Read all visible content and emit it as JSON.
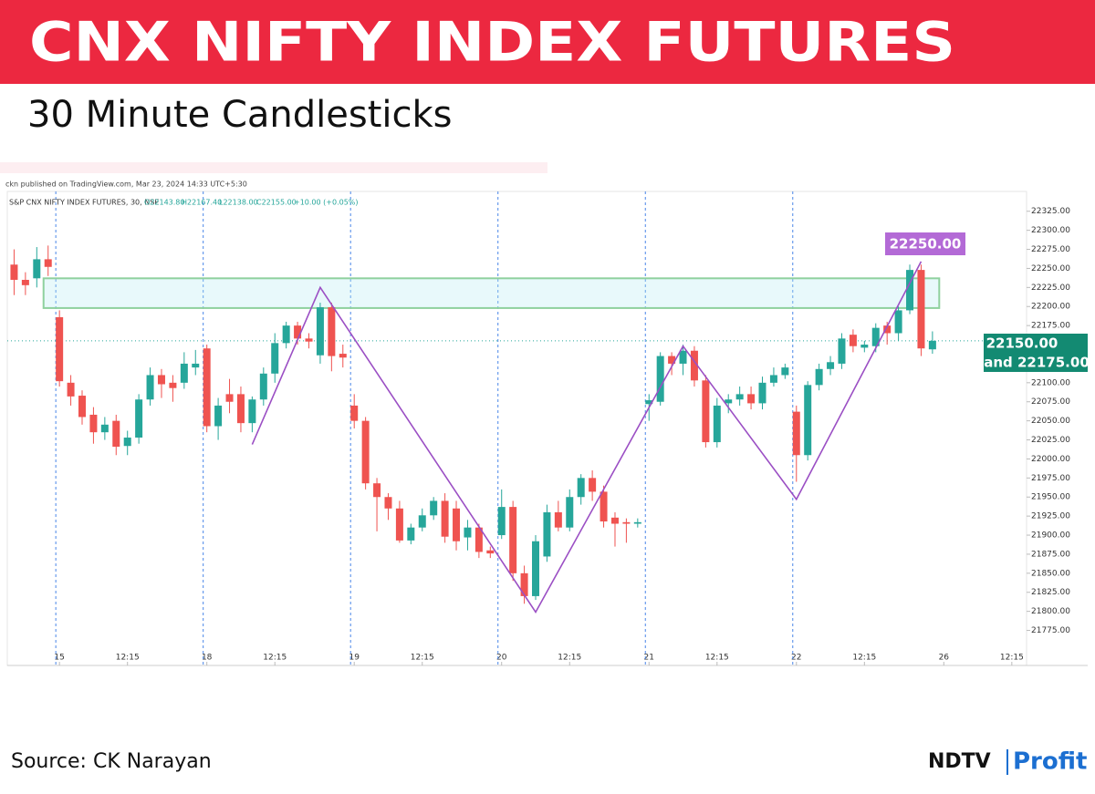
{
  "chart_data": {
    "type": "candlestick",
    "title": "CNX NIFTY INDEX FUTURES",
    "subtitle": "30 Minute Candlesticks",
    "publisher_note": "ckn published on TradingView.com, Mar 23, 2024 14:33 UTC+5:30",
    "header": {
      "symbol": "S&P CNX NIFTY INDEX FUTURES, 30, NSE",
      "open": "O22143.80",
      "high": "H22167.40",
      "low": "L22138.00",
      "close": "C22155.00",
      "change": "+10.00 (+0.05%)"
    },
    "up_color": "#26a69a",
    "down_color": "#ef5350",
    "x": [
      -4,
      -3,
      -2,
      -1,
      0,
      1,
      2,
      3,
      4,
      5,
      6,
      7,
      8,
      9,
      10,
      11,
      12,
      13,
      14,
      15,
      16,
      17,
      18,
      19,
      20,
      21,
      22,
      23,
      24,
      25,
      26,
      27,
      28,
      29,
      30,
      31,
      32,
      33,
      34,
      35,
      36,
      37,
      38,
      39,
      40,
      41,
      42,
      43,
      44,
      45,
      46,
      47,
      48,
      49,
      50,
      51,
      52,
      53,
      54,
      55,
      56,
      57,
      58,
      59,
      60,
      61,
      62,
      63,
      64,
      65,
      66,
      67,
      68,
      69,
      70,
      71,
      72,
      73,
      74,
      75,
      76,
      77
    ],
    "open": [
      22255,
      22235,
      22237,
      22262,
      22186,
      22100,
      22083,
      22058,
      22035,
      22050,
      22017,
      22028,
      22078,
      22110,
      22100,
      22100,
      22120,
      22145,
      22043,
      22085,
      22085,
      22047,
      22078,
      22112,
      22152,
      22175,
      22158,
      22136,
      22199,
      22138,
      22070,
      22050,
      21968,
      21950,
      21935,
      21893,
      21910,
      21926,
      21945,
      21935,
      21897,
      21910,
      21880,
      21900,
      21937,
      21850,
      21820,
      21872,
      21930,
      21910,
      21950,
      21975,
      21957,
      21923,
      21917,
      21915,
      22072,
      22075,
      22135,
      22125,
      22142,
      22103,
      22022,
      22073,
      22078,
      22085,
      22073,
      22100,
      22110,
      22062,
      22005,
      22097,
      22118,
      22125,
      22163,
      22146,
      22148,
      22175,
      22165,
      22195,
      22248,
      22143.8
    ],
    "high": [
      22275,
      22245,
      22278,
      22280,
      22195,
      22110,
      22090,
      22068,
      22055,
      22058,
      22037,
      22085,
      22120,
      22118,
      22110,
      22140,
      22143,
      22150,
      22080,
      22105,
      22095,
      22082,
      22120,
      22165,
      22180,
      22180,
      22165,
      22205,
      22205,
      22150,
      22085,
      22055,
      21975,
      21955,
      21945,
      21915,
      21935,
      21950,
      21955,
      21945,
      21920,
      21915,
      21885,
      21960,
      21945,
      21860,
      21900,
      21940,
      21945,
      21960,
      21980,
      21985,
      21965,
      21930,
      21922,
      21922,
      22085,
      22140,
      22140,
      22150,
      22148,
      22110,
      22080,
      22085,
      22095,
      22095,
      22108,
      22120,
      22125,
      22070,
      22102,
      22125,
      22135,
      22165,
      22170,
      22155,
      22178,
      22180,
      22200,
      22255,
      22255,
      22167.4
    ],
    "low": [
      22215,
      22215,
      22225,
      22240,
      22095,
      22070,
      22045,
      22020,
      22025,
      22005,
      22005,
      22020,
      22070,
      22080,
      22075,
      22092,
      22110,
      22035,
      22025,
      22060,
      22035,
      22035,
      22070,
      22100,
      22145,
      22150,
      22145,
      22125,
      22115,
      22120,
      22040,
      21960,
      21905,
      21920,
      21890,
      21888,
      21905,
      21920,
      21890,
      21880,
      21880,
      21870,
      21870,
      21895,
      21840,
      21810,
      21815,
      21865,
      21905,
      21905,
      21940,
      21945,
      21910,
      21885,
      21890,
      21910,
      22050,
      22070,
      22110,
      22110,
      22095,
      22015,
      22015,
      22060,
      22070,
      22065,
      22065,
      22095,
      22105,
      21970,
      21998,
      22090,
      22110,
      22118,
      22140,
      22140,
      22140,
      22150,
      22155,
      22190,
      22135,
      22138
    ],
    "close": [
      22235,
      22228,
      22262,
      22252,
      22102,
      22082,
      22055,
      22035,
      22045,
      22016,
      22028,
      22078,
      22110,
      22098,
      22093,
      22125,
      22125,
      22043,
      22070,
      22075,
      22047,
      22078,
      22112,
      22152,
      22175,
      22158,
      22154,
      22199,
      22135,
      22133,
      22050,
      21968,
      21950,
      21935,
      21893,
      21910,
      21926,
      21945,
      21898,
      21892,
      21910,
      21878,
      21876,
      21937,
      21850,
      21820,
      21892,
      21930,
      21910,
      21950,
      21975,
      21957,
      21918,
      21915,
      21915,
      21917,
      22077,
      22135,
      22125,
      22142,
      22103,
      22022,
      22070,
      22078,
      22085,
      22073,
      22100,
      22110,
      22120,
      22005,
      22097,
      22118,
      22127,
      22158,
      22148,
      22150,
      22172,
      22165,
      22195,
      22248,
      22145,
      22155
    ],
    "xlim": [
      -4.6,
      85.3
    ],
    "ylim": [
      21729,
      22351
    ],
    "xticks": [
      {
        "value": 0,
        "label": "15"
      },
      {
        "value": 6,
        "label": "12:15"
      },
      {
        "value": 13,
        "label": "18"
      },
      {
        "value": 19,
        "label": "12:15"
      },
      {
        "value": 26,
        "label": "19"
      },
      {
        "value": 32,
        "label": "12:15"
      },
      {
        "value": 39,
        "label": "20"
      },
      {
        "value": 45,
        "label": "12:15"
      },
      {
        "value": 52,
        "label": "21"
      },
      {
        "value": 58,
        "label": "12:15"
      },
      {
        "value": 65,
        "label": "22"
      },
      {
        "value": 71,
        "label": "12:15"
      },
      {
        "value": 78,
        "label": "26"
      },
      {
        "value": 84,
        "label": "12:15"
      }
    ],
    "session_breaks": [
      0,
      13,
      26,
      39,
      52,
      65
    ],
    "yticks": [
      {
        "value": 21775,
        "label": "21775.00"
      },
      {
        "value": 21800,
        "label": "21800.00"
      },
      {
        "value": 21825,
        "label": "21825.00"
      },
      {
        "value": 21850,
        "label": "21850.00"
      },
      {
        "value": 21875,
        "label": "21875.00"
      },
      {
        "value": 21900,
        "label": "21900.00"
      },
      {
        "value": 21925,
        "label": "21925.00"
      },
      {
        "value": 21950,
        "label": "21950.00"
      },
      {
        "value": 21975,
        "label": "21975.00"
      },
      {
        "value": 22000,
        "label": "22000.00"
      },
      {
        "value": 22025,
        "label": "22025.00"
      },
      {
        "value": 22050,
        "label": "22050.00"
      },
      {
        "value": 22075,
        "label": "22075.00"
      },
      {
        "value": 22100,
        "label": "22100.00"
      },
      {
        "value": 22125,
        "label": "22125.00"
      },
      {
        "value": 22150,
        "label": "22150.00"
      },
      {
        "value": 22175,
        "label": "22175.00"
      },
      {
        "value": 22200,
        "label": "22200.00"
      },
      {
        "value": 22225,
        "label": "22225.00"
      },
      {
        "value": 22250,
        "label": "22250.00"
      },
      {
        "value": 22275,
        "label": "22275.00"
      },
      {
        "value": 22300,
        "label": "22300.00"
      },
      {
        "value": 22325,
        "label": "22325.00"
      }
    ],
    "zigzag": {
      "color": "#9b4fc4",
      "x": [
        17,
        23,
        42,
        55,
        65,
        76
      ],
      "values": [
        22019,
        22225,
        21799,
        22148,
        21947,
        22259
      ]
    },
    "zone": {
      "x": [
        -1,
        78
      ],
      "low": 22198,
      "high": 22237,
      "color": "#8fd19e"
    },
    "annotations": {
      "resistance": "22250.00",
      "support": [
        "22150.00",
        "and 22175.00"
      ]
    }
  },
  "footer": {
    "source": "Source: CK Narayan",
    "logo": [
      "NDTV",
      "Profit"
    ]
  }
}
